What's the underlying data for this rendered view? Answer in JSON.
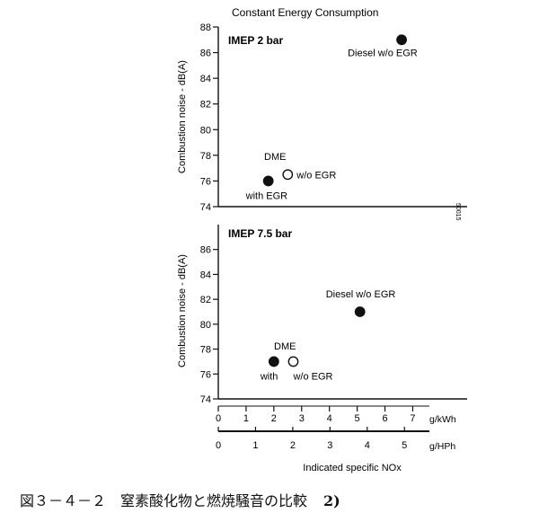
{
  "figure": {
    "title": "Constant Energy Consumption",
    "caption": "図３－４－２　窒素酸化物と燃焼騒音の比較",
    "caption_ref": "2)",
    "plot_code": "50015"
  },
  "chart_data": [
    {
      "type": "scatter",
      "title": "IMEP  2 bar",
      "ylabel": "Combustion noise  - dB(A)",
      "ylim": [
        74,
        88
      ],
      "yticks": [
        74,
        76,
        78,
        80,
        82,
        84,
        86,
        88
      ],
      "xlim": [
        0,
        7.6
      ],
      "grid": false,
      "points": [
        {
          "label": "Diesel w/o EGR",
          "x": 6.6,
          "y": 87.0,
          "filled": true
        },
        {
          "label": "w/o EGR",
          "x": 2.5,
          "y": 76.5,
          "filled": false
        },
        {
          "label": "with EGR",
          "x": 1.8,
          "y": 76.0,
          "filled": true
        }
      ],
      "annotations": [
        "DME"
      ]
    },
    {
      "type": "scatter",
      "title": "IMEP  7.5 bar",
      "ylabel": "Combustion noise  - dB(A)",
      "ylim": [
        74,
        88
      ],
      "yticks": [
        74,
        76,
        78,
        80,
        82,
        84,
        86
      ],
      "xlim": [
        0,
        7.6
      ],
      "grid": false,
      "points": [
        {
          "label": "Diesel w/o EGR",
          "x": 5.1,
          "y": 81.0,
          "filled": true
        },
        {
          "label": "with",
          "x": 2.0,
          "y": 77.0,
          "filled": true
        },
        {
          "label": "w/o EGR",
          "x": 2.7,
          "y": 77.0,
          "filled": false
        }
      ],
      "annotations": [
        "DME"
      ]
    }
  ],
  "x_axes": {
    "kwh": {
      "unit": "g/kWh",
      "ticks": [
        0,
        1,
        2,
        3,
        4,
        5,
        6,
        7
      ],
      "lim": [
        0,
        7.6
      ]
    },
    "hph": {
      "unit": "g/HPh",
      "ticks": [
        0,
        1,
        2,
        3,
        4,
        5
      ],
      "lim": [
        0,
        5.67
      ]
    },
    "label": "Indicated specific NOx"
  }
}
